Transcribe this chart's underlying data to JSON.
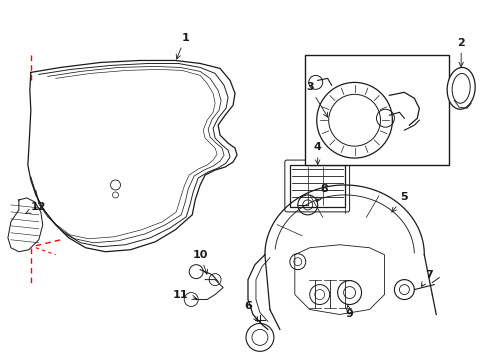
{
  "bg_color": "#ffffff",
  "line_color": "#1a1a1a",
  "red_dash_color": "#ff0000",
  "fig_width": 4.89,
  "fig_height": 3.6,
  "dpi": 100
}
